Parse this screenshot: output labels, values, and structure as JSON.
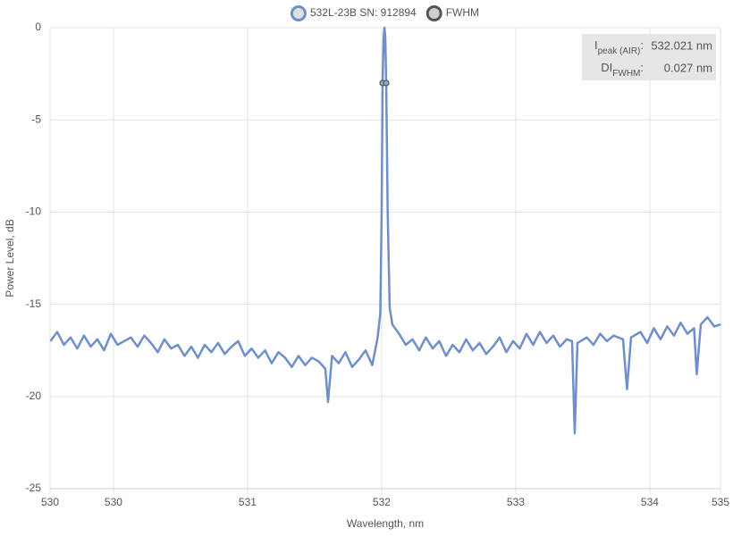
{
  "chart_data": {
    "type": "line",
    "xlabel": "Wavelength, nm",
    "ylabel": "Power Level, dB",
    "xlim": [
      529.527,
      534.527
    ],
    "ylim": [
      -25,
      0
    ],
    "xticks": [
      {
        "value": 529.527,
        "label": "530"
      },
      530,
      531,
      532,
      533,
      534,
      {
        "value": 534.527,
        "label": "535"
      }
    ],
    "yticks": [
      0,
      -5,
      -10,
      -15,
      -20,
      -25
    ],
    "grid": true,
    "legend": "top",
    "series": [
      {
        "name": "532L-23B SN: 912894",
        "color": "#6f8fcb",
        "type": "line",
        "x": [
          529.53,
          529.58,
          529.63,
          529.68,
          529.73,
          529.78,
          529.83,
          529.88,
          529.93,
          529.98,
          530.03,
          530.08,
          530.13,
          530.18,
          530.23,
          530.28,
          530.33,
          530.38,
          530.43,
          530.48,
          530.53,
          530.58,
          530.63,
          530.68,
          530.73,
          530.78,
          530.83,
          530.88,
          530.93,
          530.98,
          531.03,
          531.08,
          531.13,
          531.18,
          531.23,
          531.28,
          531.33,
          531.38,
          531.43,
          531.48,
          531.53,
          531.58,
          531.6,
          531.63,
          531.68,
          531.73,
          531.78,
          531.83,
          531.88,
          531.93,
          531.97,
          531.99,
          532.0,
          532.007,
          532.015,
          532.021,
          532.027,
          532.034,
          532.045,
          532.06,
          532.08,
          532.13,
          532.18,
          532.23,
          532.28,
          532.33,
          532.38,
          532.43,
          532.48,
          532.53,
          532.58,
          532.63,
          532.68,
          532.73,
          532.78,
          532.83,
          532.88,
          532.93,
          532.98,
          533.03,
          533.08,
          533.13,
          533.18,
          533.23,
          533.28,
          533.33,
          533.38,
          533.42,
          533.44,
          533.46,
          533.53,
          533.58,
          533.63,
          533.68,
          533.73,
          533.8,
          533.83,
          533.86,
          533.93,
          533.98,
          534.03,
          534.08,
          534.13,
          534.18,
          534.23,
          534.28,
          534.33,
          534.35,
          534.38,
          534.43,
          534.48,
          534.527
        ],
        "values": [
          -17.0,
          -16.5,
          -17.2,
          -16.8,
          -17.4,
          -16.7,
          -17.3,
          -16.9,
          -17.5,
          -16.6,
          -17.2,
          -17.0,
          -16.8,
          -17.3,
          -16.7,
          -17.1,
          -17.6,
          -16.9,
          -17.4,
          -17.2,
          -17.8,
          -17.3,
          -17.9,
          -17.2,
          -17.6,
          -17.1,
          -17.7,
          -17.3,
          -17.0,
          -17.8,
          -17.4,
          -17.9,
          -17.5,
          -18.2,
          -17.6,
          -17.9,
          -18.4,
          -17.8,
          -18.3,
          -17.9,
          -18.1,
          -18.5,
          -20.3,
          -17.8,
          -18.2,
          -17.6,
          -18.4,
          -18.0,
          -17.5,
          -18.3,
          -16.8,
          -15.5,
          -10,
          -3,
          -0.5,
          0,
          -0.5,
          -3,
          -10,
          -15.2,
          -16.1,
          -16.6,
          -17.2,
          -16.9,
          -17.5,
          -16.8,
          -17.4,
          -17.0,
          -17.8,
          -17.2,
          -17.6,
          -16.9,
          -17.5,
          -17.1,
          -17.7,
          -17.3,
          -16.8,
          -17.6,
          -17.0,
          -17.4,
          -16.6,
          -17.2,
          -16.5,
          -17.1,
          -16.7,
          -17.3,
          -16.9,
          -17.0,
          -22.0,
          -17.1,
          -16.8,
          -17.2,
          -16.6,
          -17.0,
          -16.7,
          -16.9,
          -19.6,
          -16.8,
          -16.5,
          -17.1,
          -16.3,
          -16.9,
          -16.2,
          -16.7,
          -16.0,
          -16.6,
          -16.3,
          -18.8,
          -16.1,
          -15.7,
          -16.2,
          -16.1
        ]
      },
      {
        "name": "FWHM",
        "color": "#555555",
        "type": "scatter",
        "x": [
          532.007,
          532.034
        ],
        "values": [
          -3,
          -3
        ]
      }
    ],
    "annotations": [
      {
        "label": "I",
        "sub": "peak (AIR)",
        "colon": ":",
        "value": "532.021 nm"
      },
      {
        "label": "DI",
        "sub": "FWHM",
        "colon": ":",
        "value": "0.027 nm"
      }
    ]
  }
}
